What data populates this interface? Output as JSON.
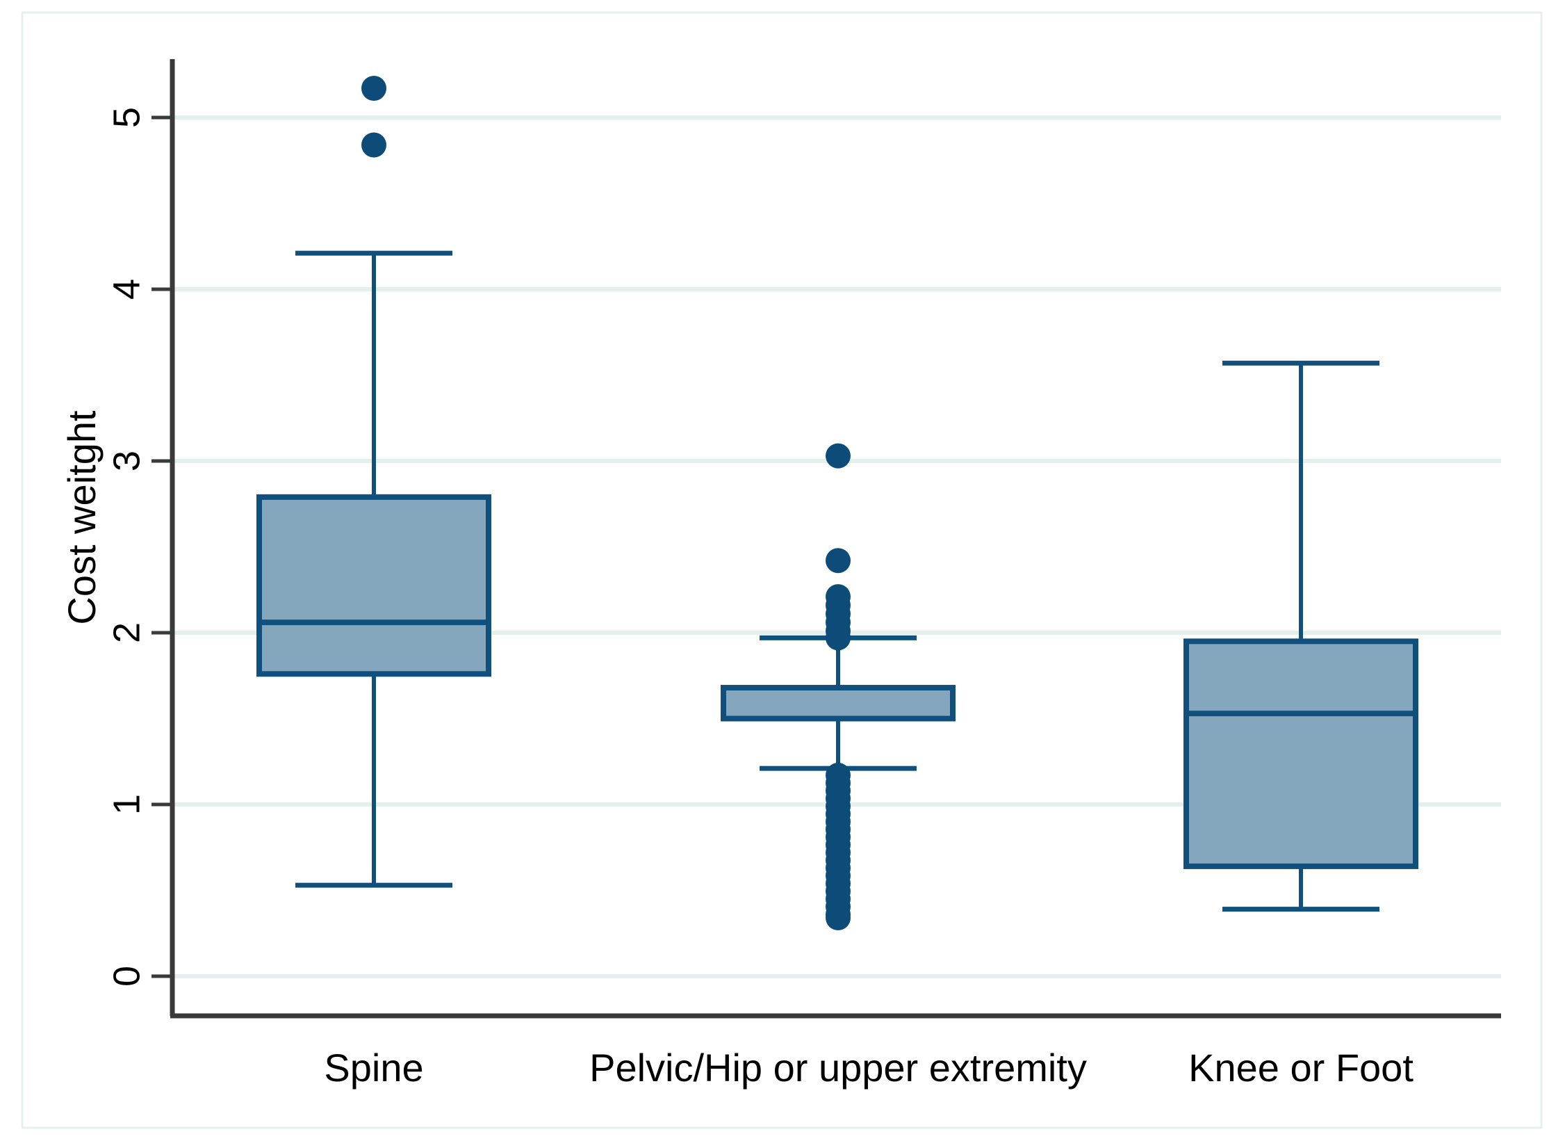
{
  "figure": {
    "background": "#ffffff"
  },
  "chart_data": {
    "type": "box",
    "title": "",
    "xlabel": "",
    "ylabel": "Cost weitght",
    "ylim": [
      -0.23,
      5.34
    ],
    "yticks": [
      0,
      1,
      2,
      3,
      4,
      5
    ],
    "grid": "horizontal",
    "legend": "none",
    "categories": [
      "Spine",
      "Pelvic/Hip or upper extremity",
      "Knee or Foot"
    ],
    "boxes": [
      {
        "category": "Spine",
        "whisker_low": 0.53,
        "q1": 1.76,
        "median": 2.06,
        "q3": 2.79,
        "whisker_high": 4.21,
        "outliers": [
          4.84,
          5.17
        ]
      },
      {
        "category": "Pelvic/Hip or upper extremity",
        "whisker_low": 1.21,
        "q1": 1.5,
        "median": 1.5,
        "q3": 1.68,
        "whisker_high": 1.97,
        "outliers": [
          3.03,
          2.42,
          2.21,
          2.16,
          2.11,
          2.06,
          2.01,
          1.97,
          1.17,
          1.125,
          1.08,
          1.035,
          0.99,
          0.945,
          0.9,
          0.855,
          0.81,
          0.765,
          0.72,
          0.675,
          0.63,
          0.585,
          0.54,
          0.495,
          0.45,
          0.405,
          0.36,
          0.34
        ]
      },
      {
        "category": "Knee or Foot",
        "whisker_low": 0.39,
        "q1": 0.64,
        "median": 1.53,
        "q3": 1.95,
        "whisker_high": 3.57,
        "outliers": []
      }
    ],
    "colors": {
      "box_fill": "#84a7bd",
      "box_stroke": "#11507c",
      "outlier_dot": "#0d4c78",
      "gridline": "#e4f0ee",
      "axis": "#3a3a3a",
      "text": "#000000",
      "figure_border": "#e9efef"
    }
  }
}
